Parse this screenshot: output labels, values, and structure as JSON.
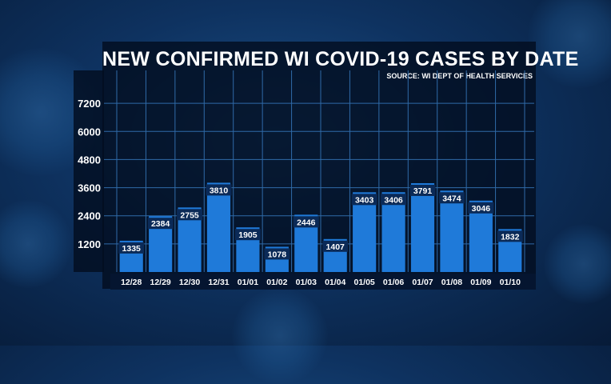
{
  "colors": {
    "bar": "#1f7ad9",
    "grid": "#2f6aa8",
    "label_bg": "#0b2a57",
    "text": "#ffffff"
  },
  "chart_data": {
    "type": "bar",
    "title": "NEW CONFIRMED WI COVID-19 CASES BY DATE",
    "subtitle": "SOURCE: WI DEPT OF HEALTH SERVICES",
    "xlabel": "",
    "ylabel": "",
    "categories": [
      "12/28",
      "12/29",
      "12/30",
      "12/31",
      "01/01",
      "01/02",
      "01/03",
      "01/04",
      "01/05",
      "01/06",
      "01/07",
      "01/08",
      "01/09",
      "01/10"
    ],
    "values": [
      1335,
      2384,
      2755,
      3810,
      1905,
      1078,
      2446,
      1407,
      3403,
      3406,
      3791,
      3474,
      3046,
      1832
    ],
    "yticks": [
      1200,
      2400,
      3600,
      4800,
      6000,
      7200
    ],
    "ylim": [
      0,
      8400
    ],
    "grid": true,
    "legend": "none"
  }
}
